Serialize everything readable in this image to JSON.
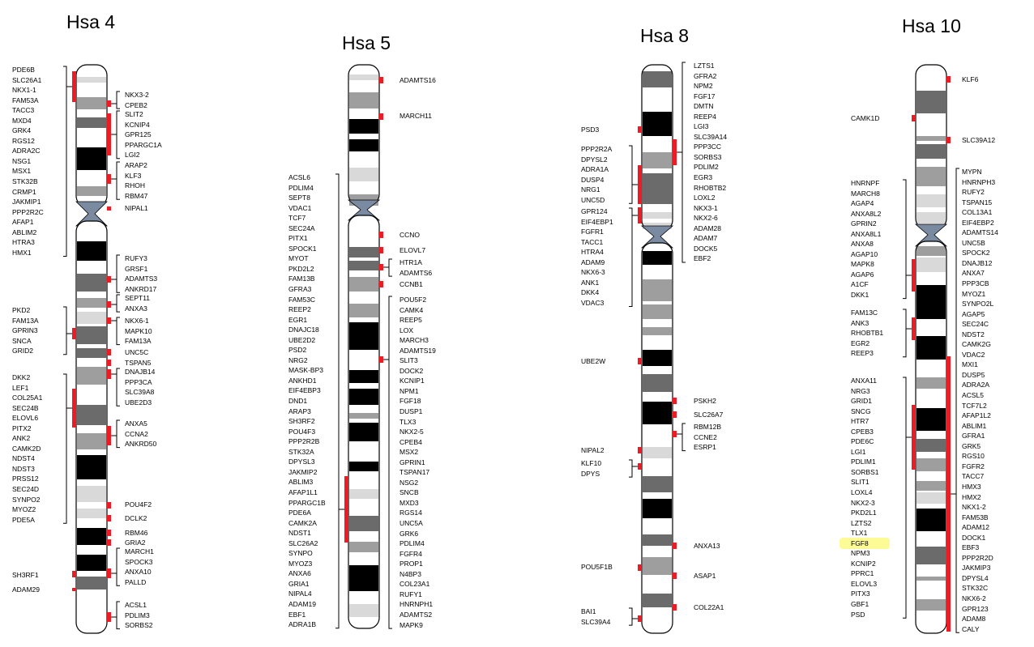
{
  "chromosomes": [
    {
      "title": "Hsa 4",
      "groups": [
        {
          "side": "left",
          "genes": [
            "PDE6B",
            "SLC26A1",
            "NKX1-1",
            "FAM53A",
            "TACC3",
            "MXD4",
            "GRK4",
            "RGS12",
            "ADRA2C",
            "NSG1",
            "MSX1",
            "STK32B",
            "CRMP1",
            "JAKMIP1",
            "PPP2R2C",
            "AFAP1",
            "ABLIM2",
            "HTRA3",
            "HMX1"
          ]
        },
        {
          "side": "right",
          "genes": [
            "NKX3-2",
            "CPEB2"
          ]
        },
        {
          "side": "right",
          "genes": [
            "SLIT2",
            "KCNIP4",
            "GPR125",
            "PPARGC1A",
            "LGI2"
          ]
        },
        {
          "side": "right",
          "genes": [
            "ARAP2",
            "KLF3",
            "RHOH",
            "RBM47"
          ]
        },
        {
          "side": "right",
          "genes": [
            "NIPAL1"
          ]
        },
        {
          "side": "right",
          "genes": [
            "RUFY3",
            "GRSF1",
            "ADAMTS3",
            "ANKRD17"
          ]
        },
        {
          "side": "right",
          "genes": [
            "SEPT11",
            "ANXA3"
          ]
        },
        {
          "side": "left",
          "genes": [
            "PKD2",
            "FAM13A",
            "GPRIN3",
            "SNCA",
            "GRID2"
          ]
        },
        {
          "side": "right",
          "genes": [
            "NKX6-1",
            "MAPK10",
            "FAM13A"
          ]
        },
        {
          "side": "right",
          "genes": [
            "UNC5C"
          ]
        },
        {
          "side": "right",
          "genes": [
            "TSPAN5"
          ]
        },
        {
          "side": "right",
          "genes": [
            "DNAJB14",
            "PPP3CA",
            "SLC39A8",
            "UBE2D3"
          ]
        },
        {
          "side": "left",
          "genes": [
            "DKK2",
            "LEF1",
            "COL25A1",
            "SEC24B",
            "ELOVL6",
            "PITX2",
            "ANK2",
            "CAMK2D",
            "NDST4",
            "NDST3",
            "PRSS12",
            "SEC24D",
            "SYNPO2",
            "MYOZ2",
            "PDE5A"
          ]
        },
        {
          "side": "right",
          "genes": [
            "ANXA5",
            "CCNA2",
            "ANKRD50"
          ]
        },
        {
          "side": "right",
          "genes": [
            "POU4F2"
          ]
        },
        {
          "side": "right",
          "genes": [
            "DCLK2"
          ]
        },
        {
          "side": "right",
          "genes": [
            "RBM46"
          ]
        },
        {
          "side": "right",
          "genes": [
            "GRIA2"
          ]
        },
        {
          "side": "right",
          "genes": [
            "MARCH1",
            "SPOCK3",
            "ANXA10",
            "PALLD"
          ]
        },
        {
          "side": "left",
          "genes": [
            "SH3RF1"
          ]
        },
        {
          "side": "left",
          "genes": [
            "ADAM29"
          ]
        },
        {
          "side": "right",
          "genes": [
            "ACSL1",
            "PDLIM3",
            "SORBS2"
          ]
        }
      ]
    },
    {
      "title": "Hsa 5",
      "groups": [
        {
          "side": "right",
          "genes": [
            "ADAMTS16"
          ]
        },
        {
          "side": "right",
          "genes": [
            "MARCH11"
          ]
        },
        {
          "side": "left",
          "genes": [
            "ACSL6",
            "PDLIM4",
            "SEPT8",
            "VDAC1",
            "TCF7",
            "SEC24A",
            "PITX1",
            "SPOCK1",
            "MYOT",
            "PKD2L2",
            "FAM13B",
            "GFRA3",
            "FAM53C",
            "REEP2",
            "EGR1",
            "DNAJC18",
            "UBE2D2",
            "PSD2",
            "NRG2",
            "MASK-BP3",
            "ANKHD1",
            "EIF4EBP3",
            "DND1",
            "ARAP3",
            "SH3RF2",
            "POU4F3",
            "PPP2R2B",
            "STK32A",
            "DPYSL3",
            "JAKMIP2",
            "ABLIM3",
            "AFAP1L1",
            "PPARGC1B",
            "PDE6A",
            "CAMK2A",
            "NDST1",
            "SLC26A2",
            "SYNPO",
            "MYOZ3",
            "ANXA6",
            "GRIA1",
            "NIPAL4",
            "ADAM19",
            "EBF1",
            "ADRA1B"
          ]
        },
        {
          "side": "right",
          "genes": [
            "CCNO"
          ]
        },
        {
          "side": "right",
          "genes": [
            "ELOVL7"
          ]
        },
        {
          "side": "right",
          "genes": [
            "HTR1A",
            "ADAMTS6"
          ]
        },
        {
          "side": "right",
          "genes": [
            "CCNB1"
          ]
        },
        {
          "side": "right",
          "genes": [
            "POU5F2",
            "CAMK4",
            "REEP5",
            "LOX",
            "MARCH3",
            "ADAMTS19",
            "SLIT3",
            "DOCK2",
            "KCNIP1",
            "NPM1",
            "FGF18",
            "DUSP1",
            "TLX3",
            "NKX2-5",
            "CPEB4",
            "MSX2",
            "GPRIN1",
            "TSPAN17",
            "NSG2",
            "SNCB",
            "MXD3",
            "RGS14",
            "UNC5A",
            "GRK6",
            "PDLIM4",
            "FGFR4",
            "PROP1",
            "N4BP3",
            "COL23A1",
            "RUFY1",
            "HNRNPH1",
            "ADAMTS2",
            "MAPK9"
          ]
        }
      ]
    },
    {
      "title": "Hsa 8",
      "groups": [
        {
          "side": "right",
          "genes": [
            "LZTS1",
            "GFRA2",
            "NPM2",
            "FGF17",
            "DMTN",
            "REEP4",
            "LGI3",
            "SLC39A14",
            "PPP3CC",
            "SORBS3",
            "PDLIM2",
            "EGR3",
            "RHOBTB2",
            "LOXL2",
            "NKX3-1",
            "NKX2-6",
            "ADAM28",
            "ADAM7",
            "DOCK5",
            "EBF2"
          ]
        },
        {
          "side": "left",
          "genes": [
            "PSD3"
          ]
        },
        {
          "side": "left",
          "genes": [
            "PPP2R2A",
            "DPYSL2",
            "ADRA1A",
            "DUSP4",
            "NRG1",
            "UNC5D"
          ]
        },
        {
          "side": "left",
          "genes": [
            "GPR124",
            "EIF4EBP1",
            "FGFR1",
            "TACC1",
            "HTRA4",
            "ADAM9",
            "NKX6-3",
            "ANK1",
            "DKK4",
            "VDAC3"
          ]
        },
        {
          "side": "left",
          "genes": [
            "UBE2W"
          ]
        },
        {
          "side": "right",
          "genes": [
            "PSKH2"
          ]
        },
        {
          "side": "right",
          "genes": [
            "SLC26A7"
          ]
        },
        {
          "side": "right",
          "genes": [
            "RBM12B",
            "CCNE2",
            "ESRP1"
          ]
        },
        {
          "side": "left",
          "genes": [
            "NIPAL2"
          ]
        },
        {
          "side": "left",
          "genes": [
            "KLF10",
            "DPYS"
          ]
        },
        {
          "side": "right",
          "genes": [
            "ANXA13"
          ]
        },
        {
          "side": "left",
          "genes": [
            "POU5F1B"
          ]
        },
        {
          "side": "right",
          "genes": [
            "ASAP1"
          ]
        },
        {
          "side": "right",
          "genes": [
            "COL22A1"
          ]
        },
        {
          "side": "left",
          "genes": [
            "BAI1",
            "SLC39A4"
          ]
        }
      ]
    },
    {
      "title": "Hsa 10",
      "groups": [
        {
          "side": "right",
          "genes": [
            "KLF6"
          ]
        },
        {
          "side": "left",
          "genes": [
            "CAMK1D"
          ]
        },
        {
          "side": "right",
          "genes": [
            "SLC39A12"
          ]
        },
        {
          "side": "left",
          "genes": [
            "HNRNPF",
            "MARCH8",
            "AGAP4",
            "ANXA8L2",
            "GPRIN2",
            "ANXA8L1",
            "ANXA8",
            "AGAP10",
            "MAPK8",
            "AGAP6",
            "A1CF",
            "DKK1"
          ]
        },
        {
          "side": "right",
          "genes": [
            "MYPN",
            "HNRNPH3",
            "RUFY2",
            "TSPAN15",
            "COL13A1",
            "EIF4EBP2",
            "ADAMTS14",
            "UNC5B",
            "SPOCK2",
            "DNAJB12",
            "ANXA7",
            "PPP3CB",
            "MYOZ1",
            "SYNPO2L",
            "AGAP5",
            "SEC24C",
            "NDST2",
            "CAMK2G",
            "VDAC2",
            "MXI1",
            "DUSP5",
            "ADRA2A",
            "ACSL5",
            "TCF7L2",
            "AFAP1L2",
            "ABLIM1",
            "GFRA1",
            "GRK5",
            "RGS10",
            "FGFR2",
            "TACC7",
            "HMX3",
            "HMX2",
            "NKX1-2",
            "FAM53B",
            "ADAM12",
            "DOCK1",
            "EBF3",
            "PPP2R2D",
            "JAKMIP3",
            "DPYSL4",
            "STK32C",
            "NKX6-2",
            "GPR123",
            "ADAM8",
            "CALY"
          ]
        },
        {
          "side": "left",
          "genes": [
            "FAM13C",
            "ANK3",
            "RHOBTB1",
            "EGR2",
            "REEP3"
          ]
        },
        {
          "side": "left",
          "genes": [
            "ANXA11",
            "NRG3",
            "GRID1",
            "SNCG",
            "HTR7",
            "CPEB3",
            "PDE6C",
            "LGI1",
            "PDLIM1",
            "SORBS1",
            "SLIT1",
            "LOXL4",
            "NKX2-3",
            "PKD2L1",
            "LZTS2",
            "TLX1",
            "FGF8",
            "NPM3",
            "KCNIP2",
            "PPRC1",
            "ELOVL3",
            "PITX3",
            "GBF1",
            "PSD"
          ]
        }
      ]
    }
  ],
  "highlighted_gene": "FGF8",
  "colors": {
    "marker": "#ed1c24",
    "band_black": "#000000",
    "band_dark": "#6b6b6b",
    "band_mid": "#9e9e9e",
    "band_light": "#d9d9d9",
    "centromere": "#7a8aa0",
    "highlight": "#fdfb96"
  }
}
